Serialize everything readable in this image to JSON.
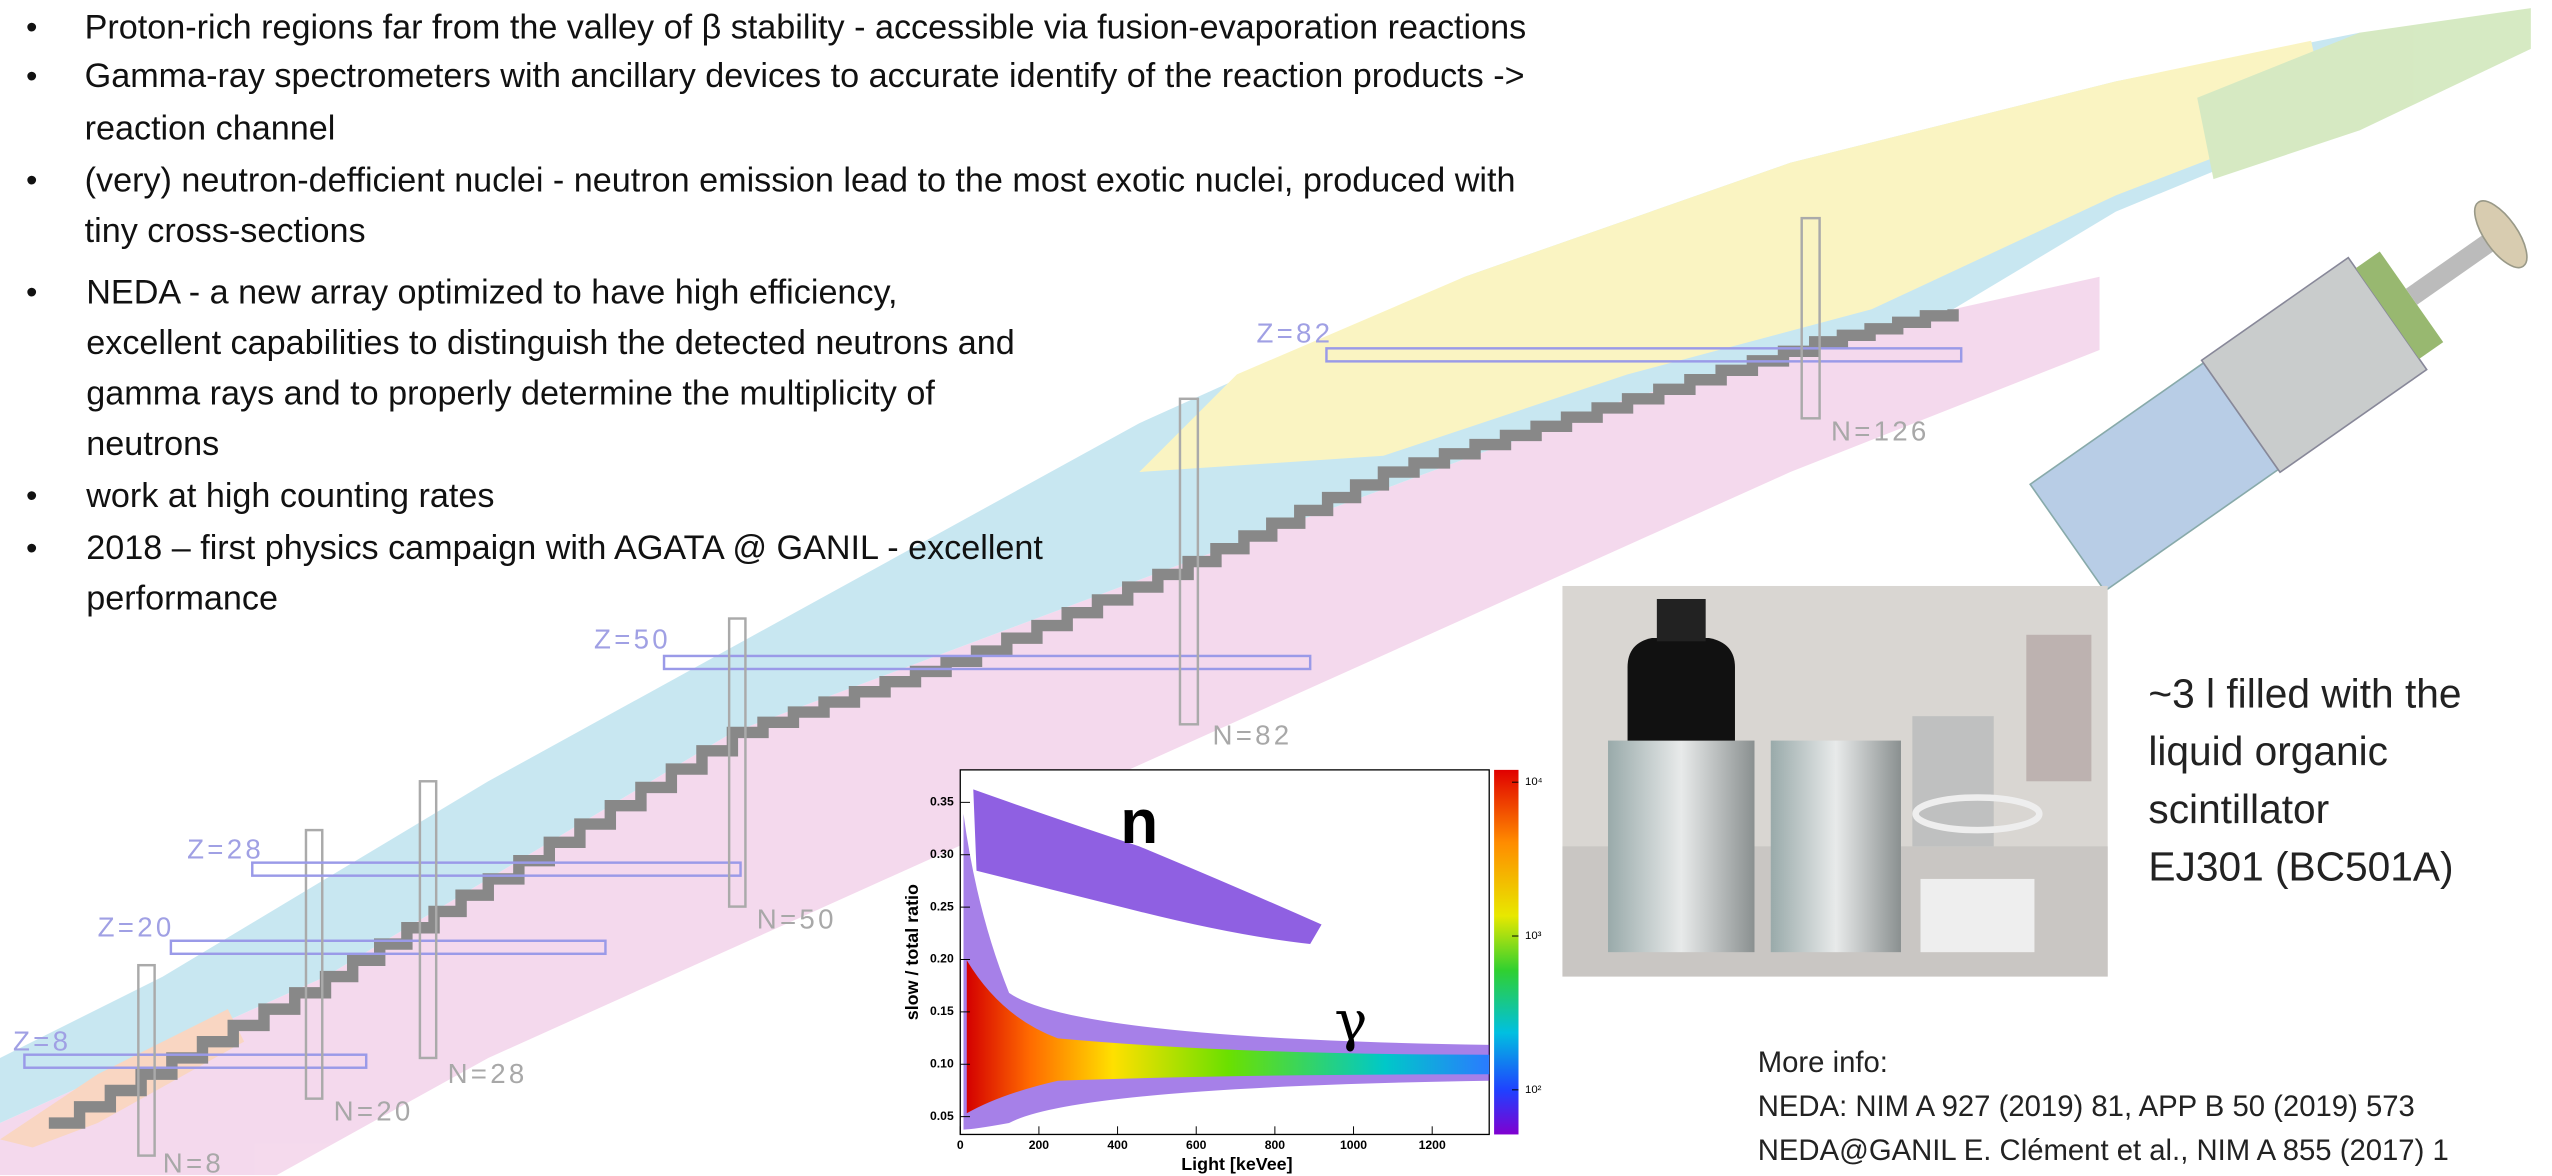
{
  "bullets": [
    [
      "Proton-rich regions far from the valley of β stability - accessible via fusion-evaporation reactions"
    ],
    [
      "Gamma-ray spectrometers with ancillary devices to accurate identify of the reaction products ->",
      "reaction channel"
    ],
    [
      "(very) neutron-defficient nuclei - neutron emission lead to the most exotic nuclei, produced with",
      "tiny cross-sections"
    ],
    [
      "NEDA - a new array optimized to have high efficiency,",
      "excellent capabilities to distinguish the detected neutrons and",
      "gamma rays and to properly determine the multiplicity of",
      "neutrons"
    ],
    [
      "work at high counting rates"
    ],
    [
      "2018 – first physics campaign with AGATA @ GANIL - excellent",
      "performance"
    ]
  ],
  "bullet_symbol": "•",
  "nuclide_chart": {
    "labels": [
      "Z=8",
      "N=8",
      "Z=20",
      "N=20",
      "Z=28",
      "N=28",
      "Z=50",
      "N=50",
      "N=82",
      "Z=82",
      "N=126"
    ]
  },
  "spectrum": {
    "xlabel": "Light [keVee]",
    "ylabel": "slow / total  ratio",
    "xlim": [
      0,
      1345
    ],
    "ylim": [
      0.033,
      0.381
    ],
    "xticks": [
      0,
      200,
      400,
      600,
      800,
      1000,
      1200
    ],
    "yticks": [
      0.05,
      {
        "value": 0.1,
        "label": "0.10"
      },
      0.15,
      {
        "value": 0.2,
        "label": "0.20"
      },
      0.25,
      {
        "value": 0.3,
        "label": "0.30"
      },
      0.35
    ],
    "colorbar": {
      "lim": [
        1.71,
        4.08
      ],
      "ticks": [
        {
          "value": 2,
          "label": "10²"
        },
        {
          "value": 3,
          "label": "10³"
        },
        {
          "value": 4,
          "label": "10⁴"
        }
      ]
    },
    "annotations": [
      "n",
      "γ"
    ]
  },
  "caption": [
    "~3 l filled with the",
    "liquid organic",
    "scintillator",
    "EJ301 (BC501A)"
  ],
  "more_info": [
    "More info:",
    "NEDA:  NIM A 927 (2019) 81, APP B 50 (2019) 573",
    "NEDA@GANIL E. Clément et al., NIM A 855 (2017) 1"
  ]
}
